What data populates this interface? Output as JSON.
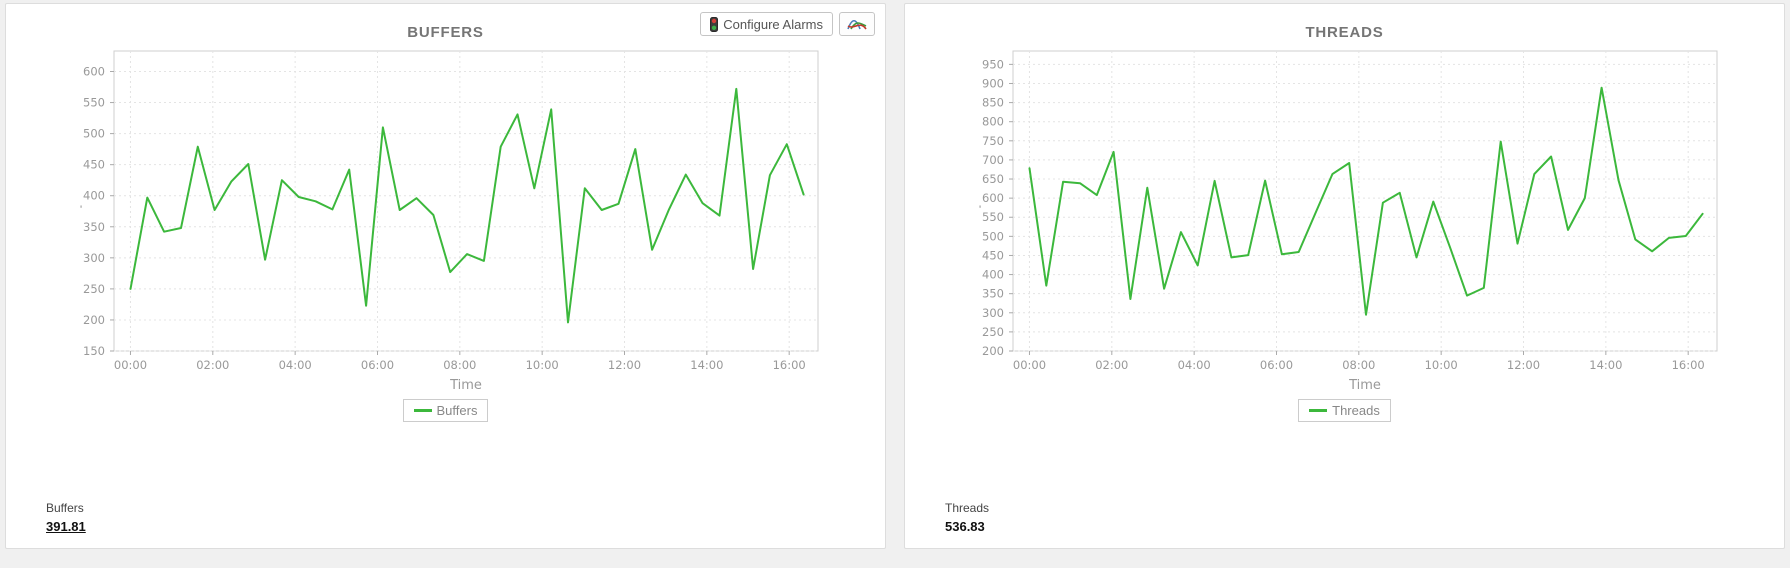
{
  "colors": {
    "accent_green": "#3cb83c",
    "grid": "#e4e4e4",
    "axis_border": "#cfcfcf",
    "tick_color": "#aaaaaa",
    "tick_text": "#999999",
    "title_text": "#757575",
    "panel_border": "#dddddd",
    "page_bg": "#f0f0f0"
  },
  "toolbar": {
    "configure_alarms_label": "Configure Alarms"
  },
  "panels": [
    {
      "id": "buffers",
      "y_axis_mark": "'",
      "stat_label": "Buffers",
      "stat_value": "391.81",
      "stat_underline": true,
      "has_toolbar": true
    },
    {
      "id": "threads",
      "y_axis_mark": "'",
      "stat_label": "Threads",
      "stat_value": "536.83",
      "stat_underline": false,
      "has_toolbar": false
    }
  ],
  "chart_data": [
    {
      "type": "line",
      "title": "BUFFERS",
      "xlabel": "Time",
      "x_ticks": [
        "00:00",
        "02:00",
        "04:00",
        "06:00",
        "08:00",
        "10:00",
        "12:00",
        "14:00",
        "16:00"
      ],
      "x_tick_interval_hours": 2,
      "x_data_span_hours": 16.35,
      "xlim": [
        -0.4,
        16.7
      ],
      "ylim": [
        150,
        633
      ],
      "y_ticks": {
        "min": 150,
        "max": 600,
        "step": 50
      },
      "grid": true,
      "legend_position": "bottom",
      "series": [
        {
          "name": "Buffers",
          "color": "#3cb83c",
          "values": [
            250,
            397,
            342,
            348,
            479,
            377,
            423,
            451,
            297,
            425,
            398,
            391,
            378,
            442,
            223,
            510,
            377,
            396,
            369,
            277,
            306,
            295,
            479,
            531,
            412,
            539,
            196,
            412,
            377,
            387,
            475,
            313,
            378,
            434,
            388,
            368,
            572,
            282,
            433,
            483,
            402
          ]
        }
      ]
    },
    {
      "type": "line",
      "title": "THREADS",
      "xlabel": "Time",
      "x_ticks": [
        "00:00",
        "02:00",
        "04:00",
        "06:00",
        "08:00",
        "10:00",
        "12:00",
        "14:00",
        "16:00"
      ],
      "x_tick_interval_hours": 2,
      "x_data_span_hours": 16.35,
      "xlim": [
        -0.4,
        16.7
      ],
      "ylim": [
        200,
        985
      ],
      "y_ticks": {
        "min": 200,
        "max": 950,
        "step": 50
      },
      "grid": true,
      "legend_position": "bottom",
      "series": [
        {
          "name": "Threads",
          "color": "#3cb83c",
          "values": [
            678,
            371,
            643,
            639,
            608,
            721,
            336,
            627,
            363,
            511,
            424,
            645,
            445,
            451,
            646,
            453,
            459,
            561,
            663,
            692,
            295,
            588,
            614,
            445,
            591,
            470,
            345,
            365,
            748,
            481,
            663,
            709,
            517,
            600,
            889,
            647,
            492,
            461,
            496,
            501,
            559
          ]
        }
      ]
    }
  ]
}
